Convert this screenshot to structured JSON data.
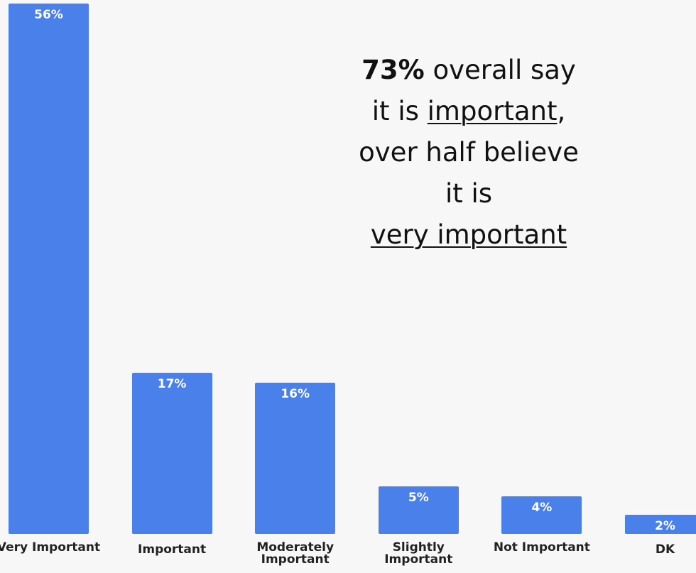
{
  "chart_data": {
    "type": "bar",
    "categories": [
      "Very Important",
      "Important",
      "Moderately Important",
      "Slightly Important",
      "Not Important",
      "DK"
    ],
    "values": [
      56,
      17,
      16,
      5,
      4,
      2
    ],
    "value_labels": [
      "56%",
      "17%",
      "16%",
      "5%",
      "4%",
      "2%"
    ],
    "color": "#4a80ea",
    "annotation": [
      [
        {
          "text": "73%",
          "bold": true
        },
        {
          "text": " overall say"
        }
      ],
      [
        {
          "text": "it is "
        },
        {
          "text": "important",
          "underline": true
        },
        {
          "text": ","
        }
      ],
      [
        {
          "text": "over half believe"
        }
      ],
      [
        {
          "text": "it is"
        }
      ],
      [
        {
          "text": "very important",
          "underline": true
        }
      ]
    ]
  }
}
